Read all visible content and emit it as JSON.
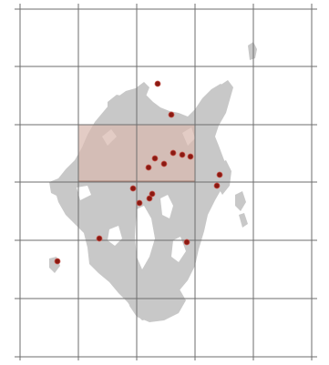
{
  "map": {
    "colors": {
      "background": "#ffffff",
      "grid_line": "#6e6e6e",
      "land": "#c8c8c8",
      "highlight_fill": "#d8b8ae",
      "highlight_stroke": "#a98275",
      "point_fill": "#8b1a12",
      "point_stroke": "#c8564e"
    },
    "grid": {
      "columns": 5,
      "rows": 6
    },
    "highlighted_cell": {
      "col_start": 1,
      "col_end": 3,
      "row": 2
    },
    "occurrence_points": 17,
    "icons": [
      "land-mass",
      "occurrence-marker"
    ]
  }
}
